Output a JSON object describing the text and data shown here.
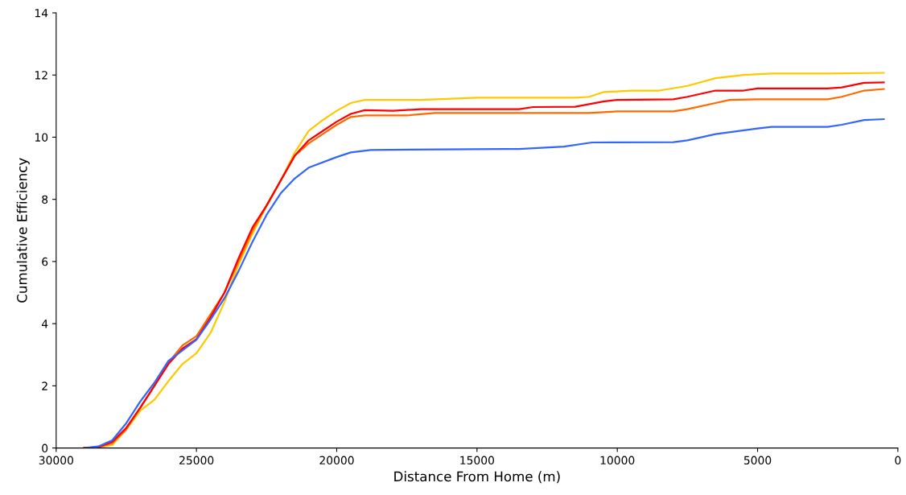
{
  "chart_data": {
    "type": "line",
    "xlabel": "Distance From Home (m)",
    "ylabel": "Cumulative Efficiency",
    "xlim": [
      30000,
      0
    ],
    "xticks": [
      30000,
      25000,
      20000,
      15000,
      10000,
      5000,
      0
    ],
    "ylim": [
      0,
      14
    ],
    "yticks": [
      0,
      2,
      4,
      6,
      8,
      10,
      12,
      14
    ],
    "grid": false,
    "series": [
      {
        "color": "#ffc800",
        "x": [
          29000,
          28500,
          28000,
          27500,
          27000,
          26500,
          26000,
          25500,
          25000,
          24500,
          24000,
          23500,
          23000,
          22500,
          22000,
          21500,
          21000,
          20500,
          20000,
          19500,
          19000,
          17000,
          15000,
          11500,
          11000,
          10500,
          9500,
          8500,
          7500,
          6500,
          5500,
          4500,
          2500,
          500
        ],
        "values": [
          0,
          0,
          0.1,
          0.6,
          1.2,
          1.55,
          2.15,
          2.7,
          3.05,
          3.7,
          4.7,
          5.9,
          6.9,
          7.8,
          8.6,
          9.5,
          10.2,
          10.55,
          10.85,
          11.1,
          11.2,
          11.2,
          11.27,
          11.27,
          11.3,
          11.45,
          11.5,
          11.5,
          11.65,
          11.9,
          12.0,
          12.05,
          12.05,
          12.07
        ]
      },
      {
        "color": "#ff6a00",
        "x": [
          29000,
          28500,
          28000,
          27500,
          27000,
          26500,
          26000,
          25500,
          25000,
          24500,
          24000,
          23500,
          23000,
          22500,
          22000,
          21500,
          21000,
          20500,
          20000,
          19500,
          19000,
          17500,
          16500,
          14000,
          11000,
          10000,
          8000,
          7500,
          6500,
          6000,
          5000,
          2500,
          2000,
          1200,
          500
        ],
        "values": [
          0,
          0.02,
          0.15,
          0.6,
          1.3,
          2.0,
          2.75,
          3.3,
          3.6,
          4.3,
          5.0,
          6.0,
          7.0,
          7.8,
          8.6,
          9.4,
          9.8,
          10.1,
          10.4,
          10.65,
          10.7,
          10.7,
          10.78,
          10.78,
          10.78,
          10.83,
          10.83,
          10.9,
          11.1,
          11.2,
          11.22,
          11.22,
          11.3,
          11.5,
          11.55
        ]
      },
      {
        "color": "#ff0000",
        "x": [
          29000,
          28500,
          28000,
          27500,
          27000,
          26500,
          26000,
          25500,
          25000,
          24500,
          24000,
          23500,
          23000,
          22500,
          22000,
          21500,
          21000,
          20500,
          20000,
          19500,
          19000,
          18000,
          17000,
          13500,
          13000,
          11500,
          10500,
          10000,
          8000,
          7500,
          6500,
          5500,
          5000,
          2500,
          2000,
          1200,
          500
        ],
        "values": [
          0,
          0.03,
          0.2,
          0.65,
          1.3,
          2.0,
          2.7,
          3.2,
          3.5,
          4.2,
          5.0,
          6.1,
          7.1,
          7.8,
          8.6,
          9.4,
          9.9,
          10.2,
          10.5,
          10.75,
          10.87,
          10.85,
          10.9,
          10.9,
          10.97,
          10.98,
          11.15,
          11.2,
          11.22,
          11.3,
          11.5,
          11.5,
          11.57,
          11.57,
          11.6,
          11.75,
          11.76
        ]
      },
      {
        "color": "#3366ff",
        "x": [
          29000,
          28500,
          28000,
          27500,
          27000,
          26500,
          26000,
          25500,
          25000,
          24500,
          24000,
          23500,
          23000,
          22500,
          22000,
          21500,
          21000,
          20000,
          19500,
          18800,
          14000,
          13500,
          11900,
          10900,
          8000,
          7500,
          6500,
          5000,
          4500,
          2500,
          2000,
          1200,
          500
        ],
        "values": [
          0,
          0.05,
          0.25,
          0.8,
          1.5,
          2.1,
          2.8,
          3.14,
          3.48,
          4.13,
          4.82,
          5.69,
          6.64,
          7.5,
          8.19,
          8.67,
          9.02,
          9.36,
          9.51,
          9.59,
          9.62,
          9.62,
          9.7,
          9.83,
          9.84,
          9.9,
          10.1,
          10.28,
          10.33,
          10.33,
          10.4,
          10.55,
          10.58
        ]
      }
    ]
  }
}
